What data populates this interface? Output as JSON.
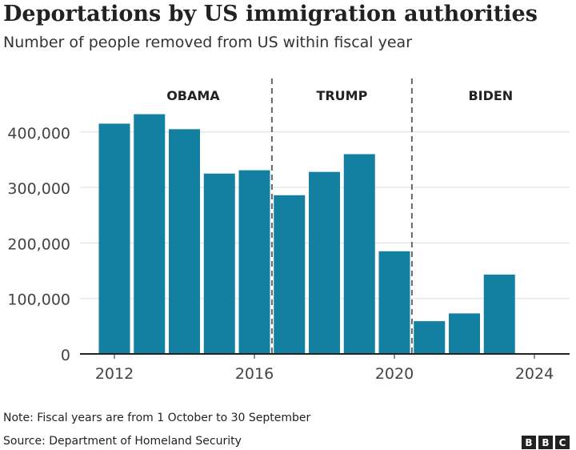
{
  "chart_data": {
    "type": "bar",
    "title": "Deportations by US immigration authorities",
    "subtitle": "Number of people removed from US within fiscal year",
    "categories": [
      2012,
      2013,
      2014,
      2015,
      2016,
      2017,
      2018,
      2019,
      2020,
      2021,
      2022,
      2023
    ],
    "values": [
      415000,
      432000,
      405000,
      325000,
      331000,
      286000,
      328000,
      360000,
      185000,
      59000,
      73000,
      143000
    ],
    "ylim": [
      0,
      430000
    ],
    "xlim": [
      2010.9,
      2025
    ],
    "yticks": [
      0,
      100000,
      200000,
      300000,
      400000
    ],
    "ytick_labels": [
      "0",
      "100,000",
      "200,000",
      "300,000",
      "400,000"
    ],
    "xticks": [
      2012,
      2016,
      2020,
      2024
    ],
    "xtick_labels": [
      "2012",
      "2016",
      "2020",
      "2024"
    ],
    "grid": true,
    "bar_color": "#1380a1",
    "annotations": [
      {
        "label": "OBAMA",
        "x": 2014.25
      },
      {
        "label": "TRUMP",
        "x": 2018.5
      },
      {
        "label": "BIDEN",
        "x": 2022.75
      }
    ],
    "dividers": [
      2016.5,
      2020.5
    ]
  },
  "note": "Note: Fiscal years are from 1 October to 30 September",
  "source": "Source: Department of Homeland Security",
  "logo": [
    "B",
    "B",
    "C"
  ]
}
